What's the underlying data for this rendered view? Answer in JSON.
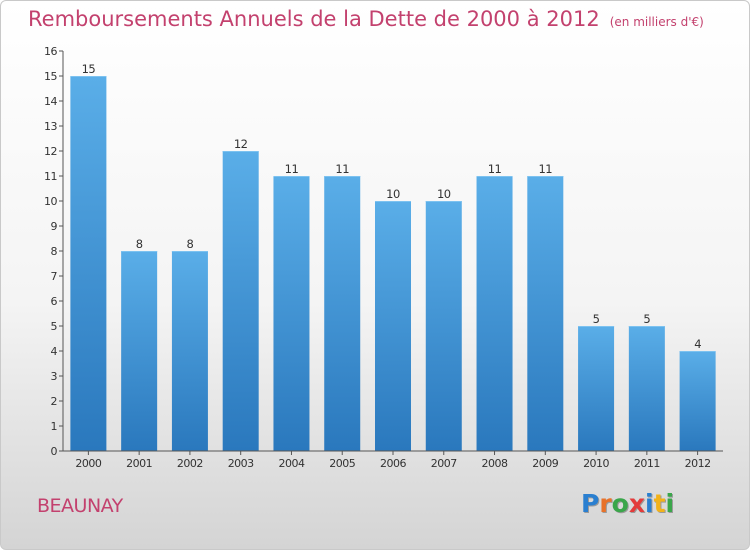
{
  "chart_data": {
    "type": "bar",
    "title": "Remboursements Annuels de la Dette de 2000 à 2012",
    "subtitle": "(en milliers d'€)",
    "xlabel": "",
    "ylabel": "",
    "categories": [
      "2000",
      "2001",
      "2002",
      "2003",
      "2004",
      "2005",
      "2006",
      "2007",
      "2008",
      "2009",
      "2010",
      "2011",
      "2012"
    ],
    "values": [
      15,
      8,
      8,
      12,
      11,
      11,
      10,
      10,
      11,
      11,
      5,
      5,
      4
    ],
    "data_labels": [
      "15",
      "8",
      "8",
      "12",
      "11",
      "11",
      "10",
      "10",
      "11",
      "11",
      "5",
      "5",
      "4"
    ],
    "yticks": [
      "0",
      "1",
      "2",
      "3",
      "4",
      "5",
      "6",
      "7",
      "8",
      "9",
      "10",
      "11",
      "12",
      "13",
      "14",
      "15",
      "16"
    ],
    "ylim": [
      0,
      16
    ],
    "grid": false,
    "legend": "none",
    "bar_color": "#4b9fdf",
    "bar_color_dark": "#2a78bd"
  },
  "footer": {
    "place": "BEAUNAY",
    "logo_letters": [
      "P",
      "r",
      "o",
      "x",
      "i",
      "t",
      "i"
    ],
    "logo_colors": [
      "#2a7fd0",
      "#e8722a",
      "#3aa64a",
      "#e33b3b",
      "#2a7fd0",
      "#f2b21a",
      "#3aa64a"
    ]
  }
}
